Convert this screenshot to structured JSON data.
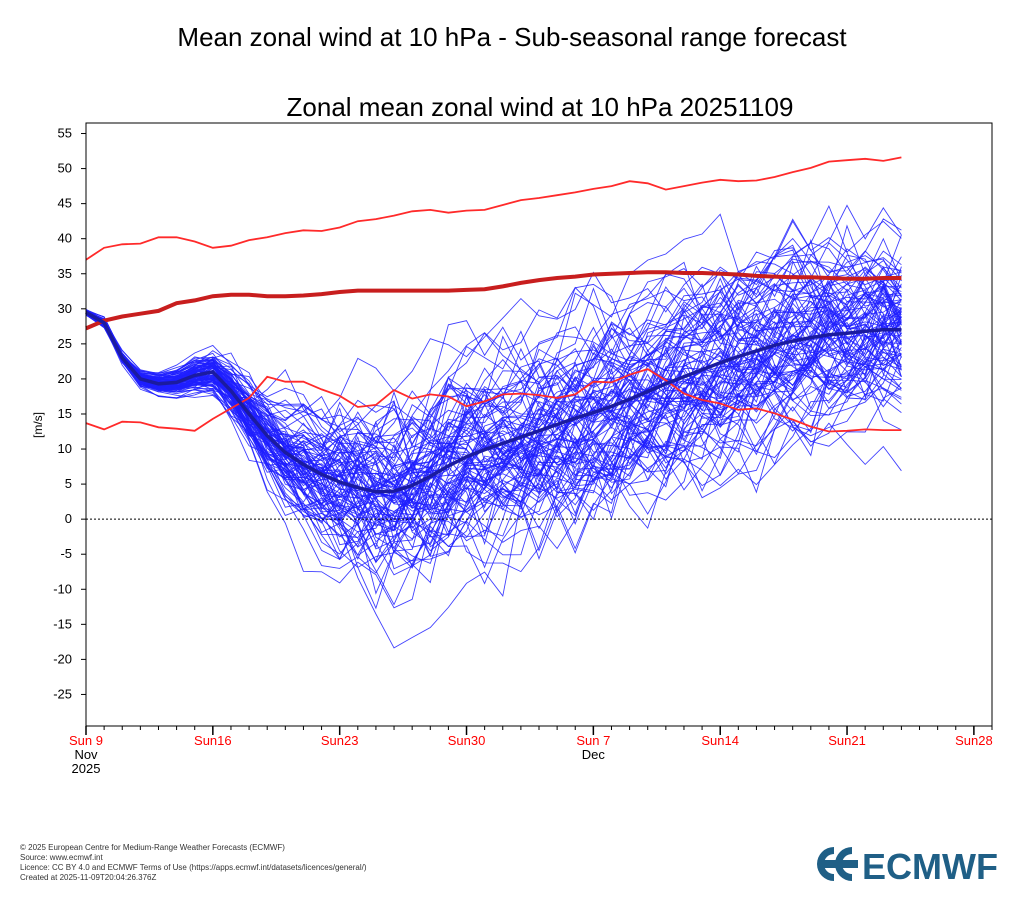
{
  "page_title": "Mean zonal wind at 10 hPa - Sub-seasonal range forecast",
  "chart_data": {
    "type": "line",
    "title": "Zonal mean zonal wind at 10 hPa 20251109",
    "ylabel": "[m/s]",
    "xlabel": "",
    "ylim": [
      -29.5,
      56.5
    ],
    "yticks": [
      55,
      50,
      45,
      40,
      35,
      30,
      25,
      20,
      15,
      10,
      5,
      0,
      -5,
      -10,
      -15,
      -20,
      -25
    ],
    "x_range": [
      "2025-11-09",
      "2025-12-29"
    ],
    "x_ticks": [
      {
        "date": "2025-11-09",
        "label": "Sun 9",
        "sub": [
          "Nov",
          "2025"
        ]
      },
      {
        "date": "2025-11-16",
        "label": "Sun16",
        "sub": []
      },
      {
        "date": "2025-11-23",
        "label": "Sun23",
        "sub": []
      },
      {
        "date": "2025-11-30",
        "label": "Sun30",
        "sub": []
      },
      {
        "date": "2025-12-07",
        "label": "Sun 7",
        "sub": [
          "Dec"
        ]
      },
      {
        "date": "2025-12-14",
        "label": "Sun14",
        "sub": []
      },
      {
        "date": "2025-12-21",
        "label": "Sun21",
        "sub": []
      },
      {
        "date": "2025-12-28",
        "label": "Sun28",
        "sub": []
      }
    ],
    "zero_line": true,
    "grid": false,
    "legend": "none",
    "colors": {
      "ensemble": "#1f1fff",
      "ensemble_mean": "#1b1ba0",
      "climatology": "#ff2a2a",
      "climatology_mean": "#c81e1e",
      "tick_labels": "#ff0000"
    },
    "climatology": {
      "dates": [
        "2025-11-09",
        "2025-11-10",
        "2025-11-11",
        "2025-11-12",
        "2025-11-13",
        "2025-11-14",
        "2025-11-15",
        "2025-11-16",
        "2025-11-17",
        "2025-11-18",
        "2025-11-19",
        "2025-11-20",
        "2025-11-21",
        "2025-11-22",
        "2025-11-23",
        "2025-11-24",
        "2025-11-25",
        "2025-11-26",
        "2025-11-27",
        "2025-11-28",
        "2025-11-29",
        "2025-11-30",
        "2025-12-01",
        "2025-12-02",
        "2025-12-03",
        "2025-12-04",
        "2025-12-05",
        "2025-12-06",
        "2025-12-07",
        "2025-12-08",
        "2025-12-09",
        "2025-12-10",
        "2025-12-11",
        "2025-12-12",
        "2025-12-13",
        "2025-12-14",
        "2025-12-15",
        "2025-12-16",
        "2025-12-17",
        "2025-12-18",
        "2025-12-19",
        "2025-12-20",
        "2025-12-21",
        "2025-12-22",
        "2025-12-23",
        "2025-12-24"
      ],
      "max": [
        37,
        38.7,
        39.2,
        39.3,
        40.2,
        40.2,
        39.6,
        38.7,
        39,
        39.8,
        40.2,
        40.8,
        41.2,
        41.1,
        41.6,
        42.5,
        42.8,
        43.3,
        43.9,
        44.1,
        43.7,
        44,
        44.1,
        44.8,
        45.5,
        45.8,
        46.2,
        46.6,
        47.1,
        47.5,
        48.2,
        47.9,
        47,
        47.5,
        48,
        48.4,
        48.2,
        48.3,
        48.8,
        49.5,
        50.1,
        51,
        51.2,
        51.4,
        51.1,
        51.6
      ],
      "mean": [
        27.2,
        28.3,
        28.9,
        29.3,
        29.7,
        30.8,
        31.2,
        31.8,
        32,
        32,
        31.8,
        31.8,
        31.9,
        32.1,
        32.4,
        32.6,
        32.6,
        32.6,
        32.6,
        32.6,
        32.6,
        32.7,
        32.8,
        33.2,
        33.7,
        34.1,
        34.4,
        34.6,
        34.9,
        35,
        35.1,
        35.2,
        35.2,
        35.1,
        35.1,
        35,
        34.9,
        34.7,
        34.6,
        34.5,
        34.5,
        34.4,
        34.3,
        34.3,
        34.4,
        34.4
      ],
      "min": [
        13.7,
        12.8,
        13.9,
        13.8,
        13.1,
        12.9,
        12.6,
        14.3,
        15.8,
        17.3,
        20.3,
        19.6,
        19.6,
        18.5,
        17.6,
        16,
        16.3,
        18.4,
        17.2,
        17.8,
        17.5,
        16.1,
        16.8,
        17.8,
        17.9,
        17.7,
        17.3,
        17.8,
        19.6,
        19.5,
        20.6,
        21.4,
        19.8,
        17.9,
        17,
        16.5,
        15.6,
        15.8,
        15.1,
        14.2,
        13.2,
        12.5,
        12.6,
        12.8,
        12.7,
        12.7
      ]
    },
    "ensemble_mean": {
      "dates": [
        "2025-11-09",
        "2025-11-10",
        "2025-11-11",
        "2025-11-12",
        "2025-11-13",
        "2025-11-14",
        "2025-11-15",
        "2025-11-16",
        "2025-11-17",
        "2025-11-18",
        "2025-11-19",
        "2025-11-20",
        "2025-11-21",
        "2025-11-22",
        "2025-11-23",
        "2025-11-24",
        "2025-11-25",
        "2025-11-26",
        "2025-11-27",
        "2025-11-28",
        "2025-11-29",
        "2025-11-30",
        "2025-12-01",
        "2025-12-02",
        "2025-12-03",
        "2025-12-04",
        "2025-12-05",
        "2025-12-06",
        "2025-12-07",
        "2025-12-08",
        "2025-12-09",
        "2025-12-10",
        "2025-12-11",
        "2025-12-12",
        "2025-12-13",
        "2025-12-14",
        "2025-12-15",
        "2025-12-16",
        "2025-12-17",
        "2025-12-18",
        "2025-12-19",
        "2025-12-20",
        "2025-12-21",
        "2025-12-22",
        "2025-12-23",
        "2025-12-24"
      ],
      "values": [
        29.5,
        28,
        23,
        20,
        19.3,
        19.5,
        20.5,
        21,
        18.3,
        15,
        11.9,
        9.5,
        7.8,
        6.4,
        5.3,
        4.5,
        3.9,
        4,
        4.8,
        6.1,
        7.6,
        8.9,
        9.9,
        10.8,
        11.7,
        12.6,
        13.5,
        14.4,
        15.2,
        16.1,
        17.1,
        18.2,
        19.3,
        20.3,
        21.3,
        22.3,
        23.2,
        24,
        24.8,
        25.4,
        25.9,
        26.3,
        26.5,
        26.8,
        27,
        27
      ]
    },
    "ensemble": {
      "start_date": "2025-11-09",
      "day_step": 1,
      "member_count": 101
    }
  },
  "footer": {
    "lines": [
      "© 2025 European Centre for Medium-Range Weather Forecasts (ECMWF)",
      "Source: www.ecmwf.int",
      "Licence: CC BY 4.0 and ECMWF Terms of Use (https://apps.ecmwf.int/datasets/licences/general/)",
      "Created at 2025-11-09T20:04:26.376Z"
    ]
  },
  "logo": {
    "text": "ECMWF",
    "color": "#1f5f86"
  }
}
